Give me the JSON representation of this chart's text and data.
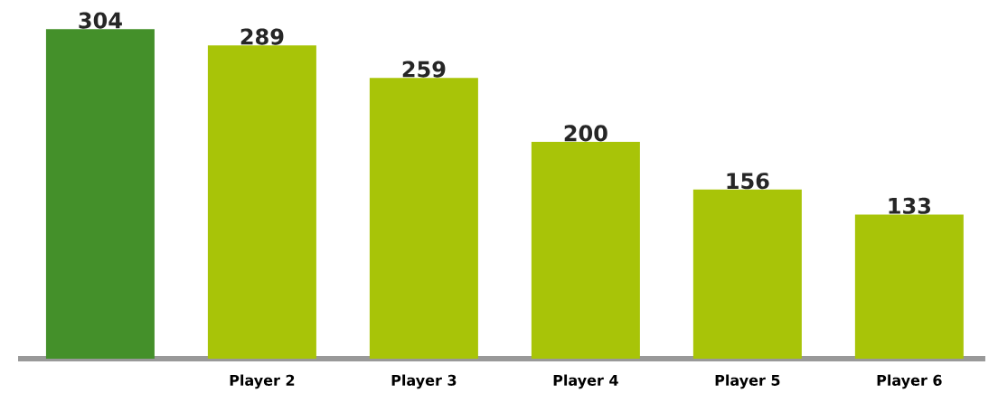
{
  "chart_data": {
    "type": "bar",
    "categories": [
      null,
      "Player 2",
      "Player 3",
      "Player 4",
      "Player 5",
      "Player 6"
    ],
    "values": [
      304,
      289,
      259,
      200,
      156,
      133
    ],
    "colors": [
      "#44902a",
      "#a8c408",
      "#a8c408",
      "#a8c408",
      "#a8c408",
      "#a8c408"
    ],
    "data_labels": true
  }
}
